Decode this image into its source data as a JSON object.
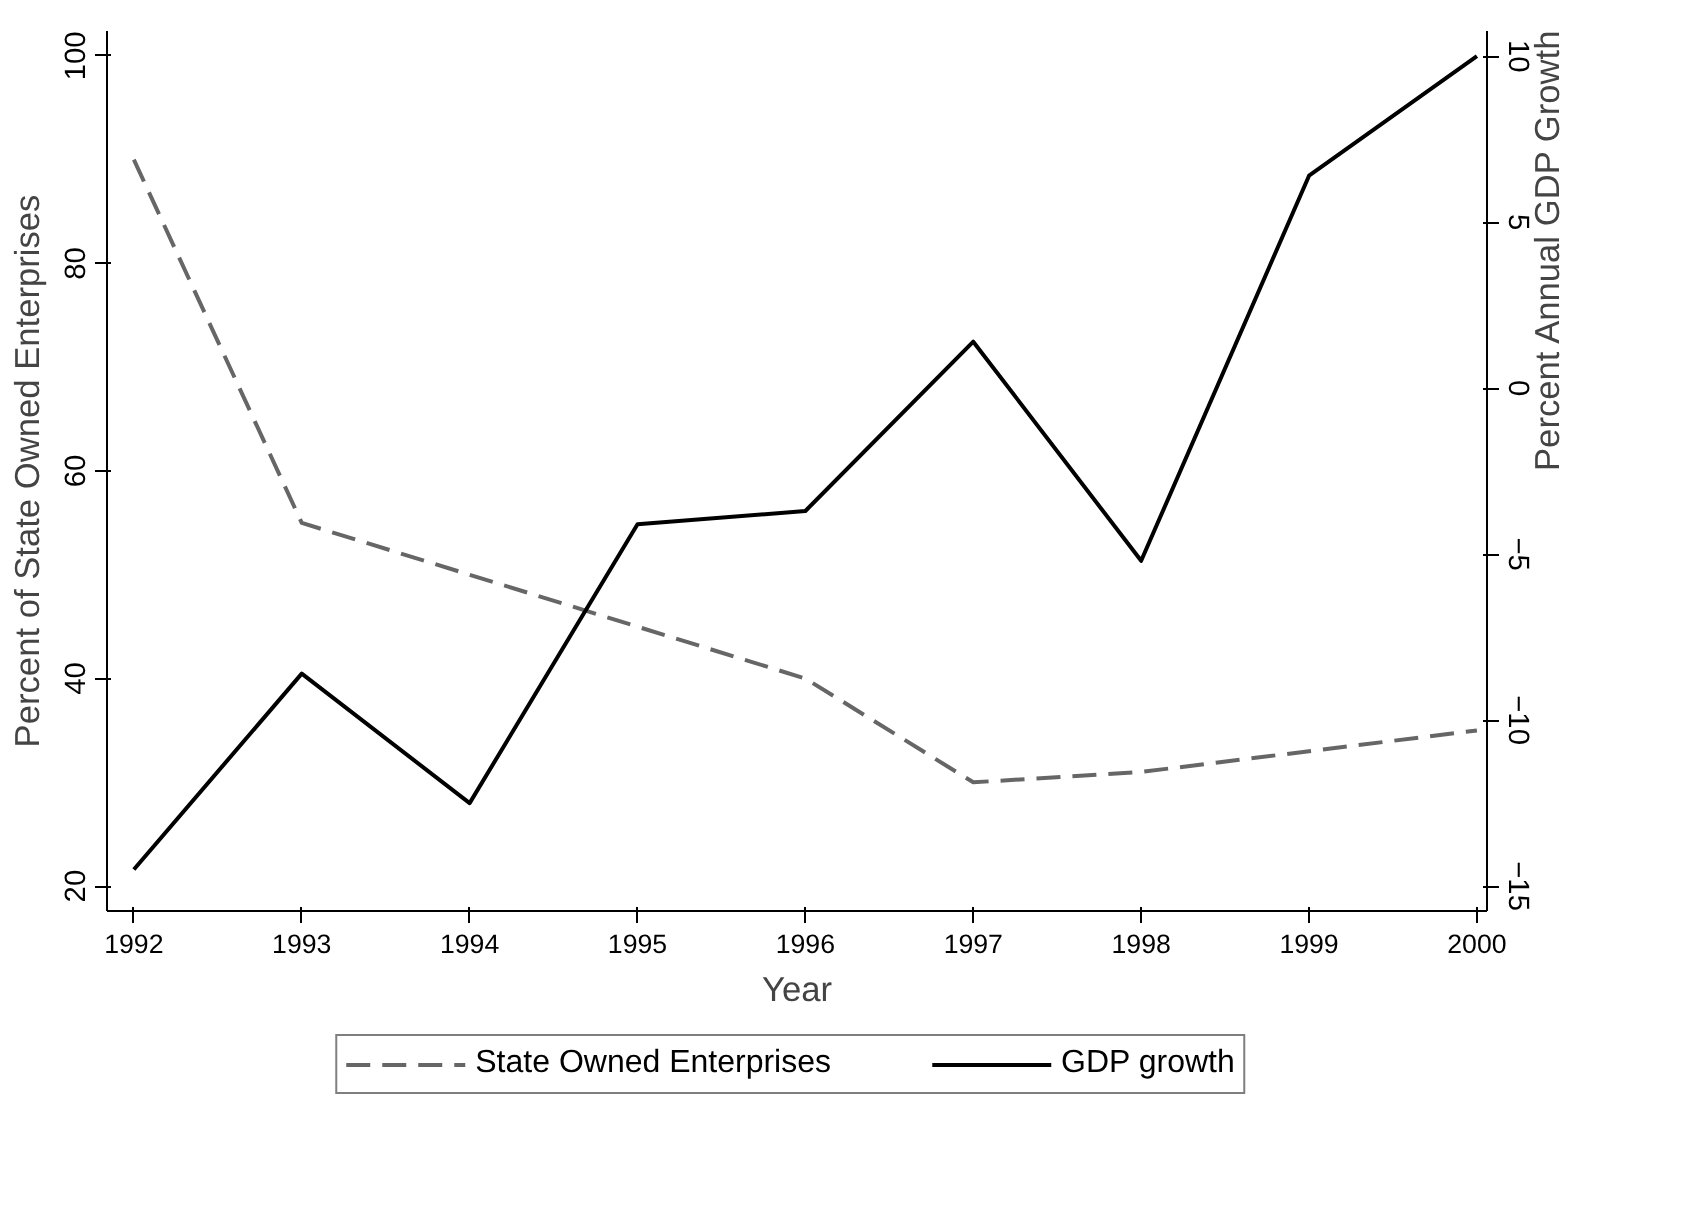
{
  "chart_data": {
    "type": "line",
    "xlabel": "Year",
    "ylabel": "Percent of State Owned Enterprises",
    "y2label": "Percent Annual GDP Growth",
    "x": [
      1992,
      1993,
      1994,
      1995,
      1996,
      1997,
      1998,
      1999,
      2000
    ],
    "series": [
      {
        "name": "State Owned Enterprises",
        "color": "#666666",
        "line_style": "dashed",
        "values": [
          90,
          55,
          50,
          45,
          40,
          30,
          31,
          33,
          35
        ]
      },
      {
        "name": "GDP growth",
        "color": "#000000",
        "line_style": "solid",
        "axis": "y2",
        "values": [
          -14.5,
          -8.6,
          -12.5,
          -4.1,
          -3.7,
          1.4,
          -5.2,
          6.4,
          10
        ]
      }
    ],
    "xlim": [
      1991.84,
      2000.06
    ],
    "xticks": [
      1992,
      1993,
      1994,
      1995,
      1996,
      1997,
      1998,
      1999,
      2000
    ],
    "ylim": [
      17.6,
      102.4
    ],
    "yticks": [
      20,
      40,
      60,
      80,
      100
    ],
    "y2lim": [
      -15.75,
      10.76
    ],
    "y2ticks": [
      -15,
      -10,
      -5,
      0,
      5,
      10
    ],
    "grid": false,
    "legend": "bottom",
    "marker": "none"
  }
}
